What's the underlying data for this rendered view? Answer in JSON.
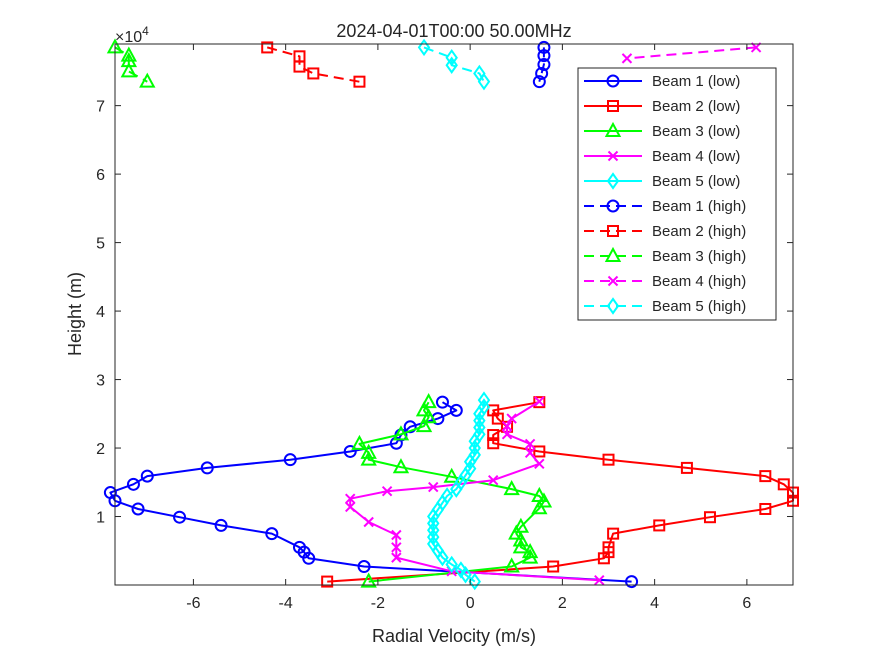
{
  "chart_data": {
    "type": "line",
    "title": "2024-04-01T00:00 50.00MHz",
    "xlabel": "Radial Velocity (m/s)",
    "ylabel": "Height (m)",
    "y_exponent_label": "×10",
    "y_exponent_power": "4",
    "xlim": [
      -7.7,
      7.0
    ],
    "ylim": [
      0,
      79000
    ],
    "x_ticks": [
      -6,
      -4,
      -2,
      0,
      2,
      4,
      6
    ],
    "x_tick_labels": [
      "-6",
      "-4",
      "-2",
      "0",
      "2",
      "4",
      "6"
    ],
    "y_ticks": [
      10000,
      20000,
      30000,
      40000,
      50000,
      60000,
      70000
    ],
    "y_tick_labels": [
      "1",
      "2",
      "3",
      "4",
      "5",
      "6",
      "7"
    ],
    "grid": false,
    "legend_position": "top-right",
    "series": [
      {
        "name": "Beam 1 (low)",
        "color": "#0000ff",
        "marker": "circle",
        "line": "solid",
        "points": [
          [
            3.5,
            500
          ],
          [
            -2.3,
            2700
          ],
          [
            -3.5,
            3900
          ],
          [
            -3.6,
            4800
          ],
          [
            -3.7,
            5500
          ],
          [
            -4.3,
            7500
          ],
          [
            -5.4,
            8700
          ],
          [
            -6.3,
            9900
          ],
          [
            -7.2,
            11100
          ],
          [
            -7.7,
            12300
          ],
          [
            -7.8,
            13500
          ],
          [
            -7.3,
            14700
          ],
          [
            -7.0,
            15900
          ],
          [
            -5.7,
            17100
          ],
          [
            -3.9,
            18300
          ],
          [
            -2.6,
            19500
          ],
          [
            -1.6,
            20700
          ],
          [
            -1.5,
            21900
          ],
          [
            -1.3,
            23100
          ],
          [
            -0.7,
            24300
          ],
          [
            -0.3,
            25500
          ],
          [
            -0.6,
            26700
          ]
        ]
      },
      {
        "name": "Beam 2 (low)",
        "color": "#ff0000",
        "marker": "square",
        "line": "solid",
        "points": [
          [
            -3.1,
            500
          ],
          [
            1.8,
            2700
          ],
          [
            2.9,
            3900
          ],
          [
            3.0,
            4800
          ],
          [
            3.0,
            5500
          ],
          [
            3.1,
            7500
          ],
          [
            4.1,
            8700
          ],
          [
            5.2,
            9900
          ],
          [
            6.4,
            11100
          ],
          [
            7.0,
            12300
          ],
          [
            7.0,
            13500
          ],
          [
            6.8,
            14700
          ],
          [
            6.4,
            15900
          ],
          [
            4.7,
            17100
          ],
          [
            3.0,
            18300
          ],
          [
            1.5,
            19500
          ],
          [
            0.5,
            20700
          ],
          [
            0.5,
            21900
          ],
          [
            0.8,
            23100
          ],
          [
            0.6,
            24300
          ],
          [
            0.5,
            25500
          ],
          [
            1.5,
            26700
          ]
        ]
      },
      {
        "name": "Beam 3 (low)",
        "color": "#00ff00",
        "marker": "triangle",
        "line": "solid",
        "points": [
          [
            -2.2,
            500
          ],
          [
            0.9,
            2700
          ],
          [
            1.3,
            4000
          ],
          [
            1.3,
            4800
          ],
          [
            1.1,
            5500
          ],
          [
            1.1,
            6500
          ],
          [
            1.0,
            7500
          ],
          [
            1.1,
            8500
          ],
          [
            1.5,
            11200
          ],
          [
            1.6,
            12200
          ],
          [
            1.5,
            13000
          ],
          [
            0.9,
            14000
          ],
          [
            -0.4,
            15800
          ],
          [
            -1.5,
            17200
          ],
          [
            -2.2,
            18300
          ],
          [
            -2.2,
            19300
          ],
          [
            -2.4,
            20600
          ],
          [
            -1.5,
            22000
          ],
          [
            -1.0,
            23200
          ],
          [
            -0.9,
            24500
          ],
          [
            -1.0,
            25500
          ],
          [
            -0.9,
            26700
          ]
        ]
      },
      {
        "name": "Beam 4 (low)",
        "color": "#ff00ff",
        "marker": "x",
        "line": "solid",
        "points": [
          [
            2.8,
            700
          ],
          [
            -0.4,
            2000
          ],
          [
            -1.6,
            4000
          ],
          [
            -1.6,
            5500
          ],
          [
            -1.6,
            7300
          ],
          [
            -2.2,
            9200
          ],
          [
            -2.6,
            11400
          ],
          [
            -2.6,
            12600
          ],
          [
            -1.8,
            13700
          ],
          [
            -0.8,
            14300
          ],
          [
            0.5,
            15300
          ],
          [
            1.5,
            17700
          ],
          [
            1.3,
            19300
          ],
          [
            1.3,
            20600
          ],
          [
            0.8,
            22000
          ],
          [
            0.8,
            23200
          ],
          [
            0.9,
            24300
          ],
          [
            1.5,
            26800
          ]
        ]
      },
      {
        "name": "Beam 5 (low)",
        "color": "#00ffff",
        "marker": "diamond",
        "line": "solid",
        "points": [
          [
            0.1,
            500
          ],
          [
            -0.1,
            1500
          ],
          [
            -0.2,
            2200
          ],
          [
            -0.4,
            3000
          ],
          [
            -0.6,
            4000
          ],
          [
            -0.7,
            5000
          ],
          [
            -0.8,
            6000
          ],
          [
            -0.8,
            7000
          ],
          [
            -0.8,
            8000
          ],
          [
            -0.8,
            9000
          ],
          [
            -0.8,
            10000
          ],
          [
            -0.7,
            11000
          ],
          [
            -0.6,
            12000
          ],
          [
            -0.5,
            13000
          ],
          [
            -0.3,
            14000
          ],
          [
            -0.2,
            15000
          ],
          [
            -0.1,
            16000
          ],
          [
            0.0,
            17000
          ],
          [
            0.0,
            18000
          ],
          [
            0.1,
            19000
          ],
          [
            0.1,
            20000
          ],
          [
            0.1,
            21000
          ],
          [
            0.2,
            22000
          ],
          [
            0.2,
            23000
          ],
          [
            0.2,
            24000
          ],
          [
            0.2,
            25000
          ],
          [
            0.3,
            26000
          ],
          [
            0.3,
            27000
          ]
        ]
      },
      {
        "name": "Beam 1 (high)",
        "color": "#0000ff",
        "marker": "circle",
        "line": "dashed",
        "points": [
          [
            1.6,
            78500
          ],
          [
            1.6,
            77300
          ],
          [
            1.6,
            76000
          ],
          [
            1.55,
            74700
          ],
          [
            1.5,
            73500
          ]
        ]
      },
      {
        "name": "Beam 2 (high)",
        "color": "#ff0000",
        "marker": "square",
        "line": "dashed",
        "points": [
          [
            -4.4,
            78500
          ],
          [
            -3.7,
            77200
          ],
          [
            -3.7,
            75700
          ],
          [
            -3.4,
            74700
          ],
          [
            -2.4,
            73500
          ]
        ]
      },
      {
        "name": "Beam 3 (high)",
        "color": "#00ff00",
        "marker": "triangle",
        "line": "dashed",
        "points": [
          [
            -7.7,
            78500
          ],
          [
            -7.4,
            77300
          ],
          [
            -7.4,
            76500
          ],
          [
            -7.4,
            75000
          ],
          [
            -7.0,
            73500
          ]
        ]
      },
      {
        "name": "Beam 4 (high)",
        "color": "#ff00ff",
        "marker": "x",
        "line": "dashed",
        "points": [
          [
            6.2,
            78500
          ],
          [
            3.4,
            76900
          ]
        ]
      },
      {
        "name": "Beam 5 (high)",
        "color": "#00ffff",
        "marker": "diamond",
        "line": "dashed",
        "points": [
          [
            -1.0,
            78500
          ],
          [
            -0.4,
            77000
          ],
          [
            -0.4,
            75900
          ],
          [
            0.2,
            74700
          ],
          [
            0.3,
            73500
          ]
        ]
      }
    ]
  }
}
